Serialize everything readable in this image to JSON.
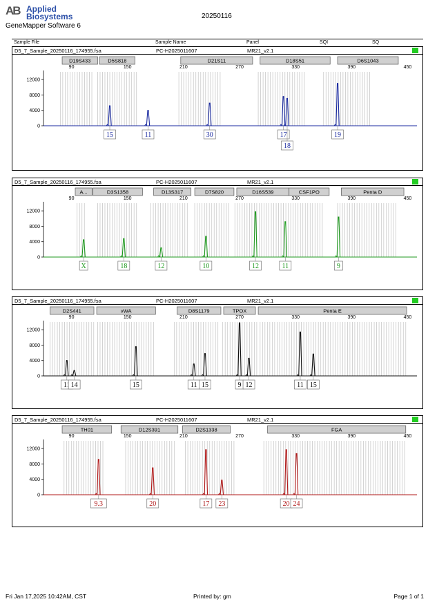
{
  "header": {
    "logo_mark": "AB",
    "brand_line1": "Applied",
    "brand_line2": "Biosystems",
    "software": "GeneMapper Software 6",
    "run_date": "20250116"
  },
  "table_header": [
    "Sample File",
    "Sample Name",
    "Panel",
    "SQI",
    "SQ"
  ],
  "sample": {
    "file": "D5_7_Sample_20250116_174955.fsa",
    "name": "PC-H2025011607",
    "panel": "MR21_v2.1"
  },
  "colors": {
    "sq_green": "#22cc22",
    "bin_gray": "#c8c8c8",
    "bin_box": "#d0d0d0"
  },
  "chart_data": [
    {
      "type": "line",
      "dye": "blue",
      "color": "#1a2aa0",
      "xlim": [
        60,
        460
      ],
      "xticks": [
        90,
        150,
        210,
        270,
        330,
        390,
        450
      ],
      "ylim": [
        0,
        14000
      ],
      "yticks": [
        0,
        4000,
        8000,
        12000
      ],
      "markers": [
        {
          "label": "D19S433",
          "start": 80,
          "end": 118
        },
        {
          "label": "D5S818",
          "start": 120,
          "end": 158
        },
        {
          "label": "D21S11",
          "start": 207,
          "end": 284
        },
        {
          "label": "D18S51",
          "start": 292,
          "end": 367
        },
        {
          "label": "D6S1043",
          "start": 375,
          "end": 440
        }
      ],
      "bin_ranges": [
        [
          78,
          112
        ],
        [
          118,
          160
        ],
        [
          205,
          250
        ],
        [
          290,
          342
        ],
        [
          360,
          410
        ]
      ],
      "peaks": [
        {
          "x": 131,
          "height": 5200,
          "allele": "15"
        },
        {
          "x": 172,
          "height": 4000,
          "allele": "11"
        },
        {
          "x": 238,
          "height": 5900,
          "allele": "30"
        },
        {
          "x": 317,
          "height": 7600,
          "allele": "17"
        },
        {
          "x": 321,
          "height": 7100,
          "allele": "18"
        },
        {
          "x": 375,
          "height": 11000,
          "allele": "19"
        }
      ]
    },
    {
      "type": "line",
      "dye": "green",
      "color": "#1f9a1f",
      "xlim": [
        60,
        460
      ],
      "xticks": [
        90,
        150,
        210,
        270,
        330,
        390,
        450
      ],
      "ylim": [
        0,
        14000
      ],
      "yticks": [
        0,
        4000,
        8000,
        12000
      ],
      "markers": [
        {
          "label": "A...",
          "start": 94,
          "end": 112
        },
        {
          "label": "D3S1358",
          "start": 113,
          "end": 166
        },
        {
          "label": "D13S317",
          "start": 178,
          "end": 218
        },
        {
          "label": "D7S820",
          "start": 222,
          "end": 264
        },
        {
          "label": "D16S539",
          "start": 267,
          "end": 323
        },
        {
          "label": "CSF1PO",
          "start": 323,
          "end": 366
        },
        {
          "label": "Penta D",
          "start": 379,
          "end": 446
        }
      ],
      "bin_ranges": [
        [
          96,
          106
        ],
        [
          118,
          160
        ],
        [
          175,
          215
        ],
        [
          222,
          260
        ],
        [
          265,
          360
        ],
        [
          375,
          440
        ]
      ],
      "peaks": [
        {
          "x": 103,
          "height": 4500,
          "allele": "X"
        },
        {
          "x": 146,
          "height": 4800,
          "allele": "18"
        },
        {
          "x": 186,
          "height": 2400,
          "allele": "12"
        },
        {
          "x": 234,
          "height": 5400,
          "allele": "10"
        },
        {
          "x": 287,
          "height": 11800,
          "allele": "12"
        },
        {
          "x": 319,
          "height": 9200,
          "allele": "11"
        },
        {
          "x": 376,
          "height": 10400,
          "allele": "9"
        }
      ]
    },
    {
      "type": "line",
      "dye": "black",
      "color": "#111111",
      "xlim": [
        60,
        460
      ],
      "xticks": [
        90,
        150,
        210,
        270,
        330,
        390,
        450
      ],
      "ylim": [
        0,
        14000
      ],
      "yticks": [
        0,
        4000,
        8000,
        12000
      ],
      "markers": [
        {
          "label": "D2S441",
          "start": 67,
          "end": 114
        },
        {
          "label": "vWA",
          "start": 117,
          "end": 180
        },
        {
          "label": "D8S1179",
          "start": 203,
          "end": 250
        },
        {
          "label": "TPOX",
          "start": 253,
          "end": 287
        },
        {
          "label": "Penta E",
          "start": 290,
          "end": 449
        }
      ],
      "bin_ranges": [
        [
          67,
          114
        ],
        [
          118,
          180
        ],
        [
          200,
          248
        ],
        [
          252,
          290
        ],
        [
          292,
          449
        ]
      ],
      "peaks": [
        {
          "x": 85,
          "height": 4000,
          "allele": "11"
        },
        {
          "x": 93,
          "height": 1400,
          "allele": "14"
        },
        {
          "x": 159,
          "height": 7600,
          "allele": "15"
        },
        {
          "x": 221,
          "height": 3100,
          "allele": "11"
        },
        {
          "x": 233,
          "height": 5800,
          "allele": "15"
        },
        {
          "x": 270,
          "height": 13800,
          "allele": "9"
        },
        {
          "x": 280,
          "height": 4600,
          "allele": "12"
        },
        {
          "x": 335,
          "height": 11400,
          "allele": "11"
        },
        {
          "x": 349,
          "height": 5700,
          "allele": "15"
        }
      ]
    },
    {
      "type": "line",
      "dye": "red",
      "color": "#b01818",
      "xlim": [
        60,
        460
      ],
      "xticks": [
        90,
        150,
        210,
        270,
        330,
        390,
        450
      ],
      "ylim": [
        0,
        14000
      ],
      "yticks": [
        0,
        4000,
        8000,
        12000
      ],
      "markers": [
        {
          "label": "TH01",
          "start": 80,
          "end": 133
        },
        {
          "label": "D12S391",
          "start": 143,
          "end": 204
        },
        {
          "label": "D2S1338",
          "start": 209,
          "end": 260
        },
        {
          "label": "FGA",
          "start": 300,
          "end": 448
        }
      ],
      "bin_ranges": [
        [
          82,
          124
        ],
        [
          148,
          200
        ],
        [
          212,
          265
        ],
        [
          296,
          448
        ]
      ],
      "peaks": [
        {
          "x": 119,
          "height": 9200,
          "allele": "9.3"
        },
        {
          "x": 177,
          "height": 7000,
          "allele": "20"
        },
        {
          "x": 234,
          "height": 11700,
          "allele": "17"
        },
        {
          "x": 251,
          "height": 3800,
          "allele": "23"
        },
        {
          "x": 320,
          "height": 11700,
          "allele": "20"
        },
        {
          "x": 331,
          "height": 10700,
          "allele": "24"
        }
      ]
    }
  ],
  "footer": {
    "printed_at": "Fri Jan 17,2025 10:42AM, CST",
    "printed_by": "Printed by: gm",
    "page": "Page 1 of 1"
  }
}
